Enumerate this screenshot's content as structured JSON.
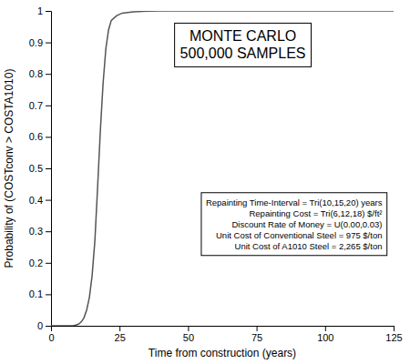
{
  "chart_data": {
    "type": "line",
    "x": [
      0,
      5,
      8,
      9,
      10,
      11,
      12,
      13,
      14,
      15,
      16,
      17,
      18,
      19,
      20,
      21,
      22,
      24,
      26,
      30,
      35,
      40,
      50,
      75,
      100,
      125
    ],
    "values": [
      0,
      0,
      0,
      0.002,
      0.005,
      0.012,
      0.025,
      0.05,
      0.09,
      0.16,
      0.27,
      0.44,
      0.62,
      0.77,
      0.88,
      0.94,
      0.97,
      0.985,
      0.993,
      0.997,
      0.999,
      1.0,
      1.0,
      1.0,
      1.0,
      1.0
    ],
    "color": "#555555",
    "xlabel": "Time from construction (years)",
    "ylabel": "Probability of (COSTconv > COSTA1010)",
    "xlim": [
      0,
      125
    ],
    "ylim": [
      0,
      1.0
    ],
    "xticks": [
      0,
      25,
      50,
      75,
      100,
      125
    ],
    "yticks": [
      0,
      0.1,
      0.2,
      0.3,
      0.4,
      0.5,
      0.6,
      0.7,
      0.8,
      0.9,
      1.0
    ],
    "grid": false,
    "annotations": [
      [
        "MONTE CARLO",
        "500,000 SAMPLES"
      ],
      [
        "Repainting Time-Interval = Tri(10,15,20) years",
        "Repainting Cost = Tri(6,12,18) $/ft²",
        "Discount Rate of Money = U(0.00,0.03)",
        "Unit Cost of Conventional Steel = 975 $/ton",
        "Unit Cost of A1010 Steel = 2,265 $/ton"
      ]
    ]
  }
}
